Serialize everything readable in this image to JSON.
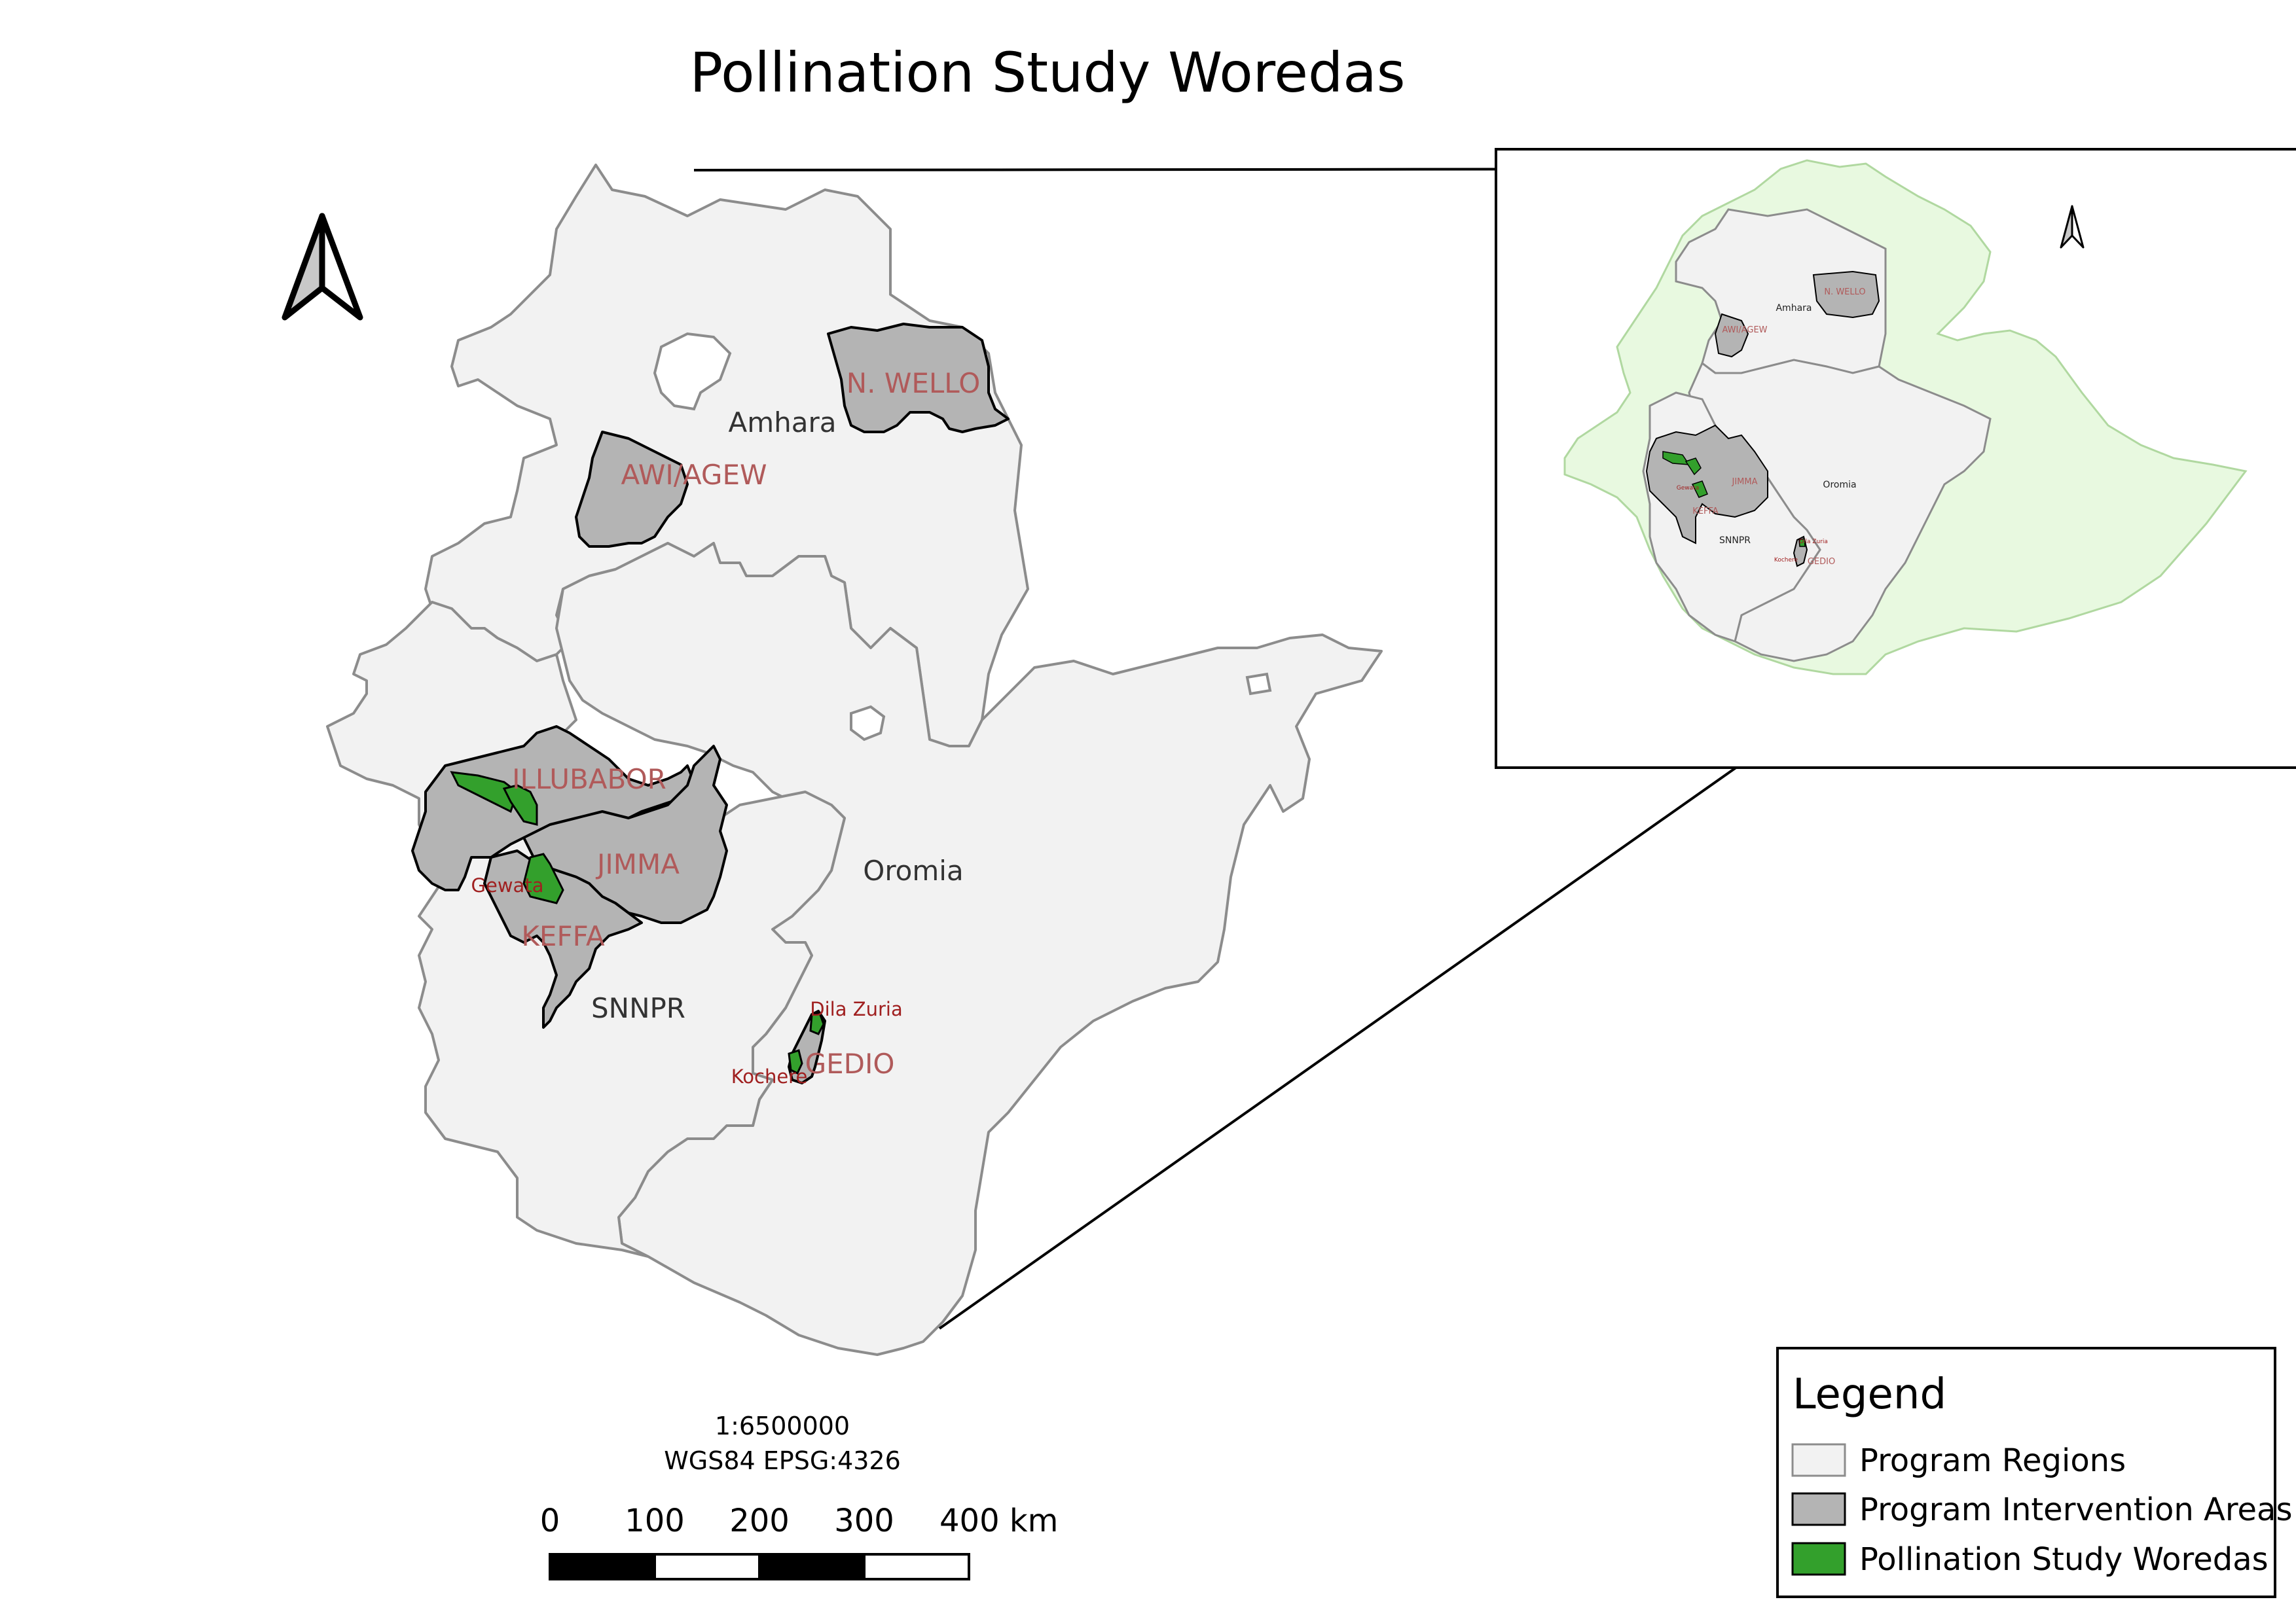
{
  "title": "Pollination Study Woredas",
  "regions": {
    "amhara": "Amhara",
    "oromia": "Oromia",
    "snnpr": "SNNPR"
  },
  "intervention_areas": {
    "n_wello": "N. WELLO",
    "awi_agew": "AWI/AGEW",
    "illubabor": "ILLUBABOR",
    "jimma": "JIMMA",
    "keffa": "KEFFA",
    "gedio": "GEDIO"
  },
  "woredas": {
    "gewata": "Gewata",
    "dila_zuria": "Dila Zuria",
    "kochere": "Kochere"
  },
  "scale": {
    "ratio": "1:6500000",
    "crs": "WGS84 EPSG:4326",
    "ticks": [
      "0",
      "100",
      "200",
      "300",
      "400 km"
    ]
  },
  "legend": {
    "title": "Legend",
    "items": [
      {
        "label": "Program Regions",
        "color": "#f2f2f2"
      },
      {
        "label": "Program Intervention Areas",
        "color": "#b4b4b4"
      },
      {
        "label": "Pollination Study Woredas",
        "color": "#33a02c"
      }
    ]
  },
  "colors": {
    "region_fill": "#f2f2f2",
    "region_stroke": "#8c8c8c",
    "area_fill": "#b4b4b4",
    "woreda_fill": "#33a02c",
    "country_fill": "#e8f9e0",
    "country_stroke": "#b0d8a0"
  }
}
